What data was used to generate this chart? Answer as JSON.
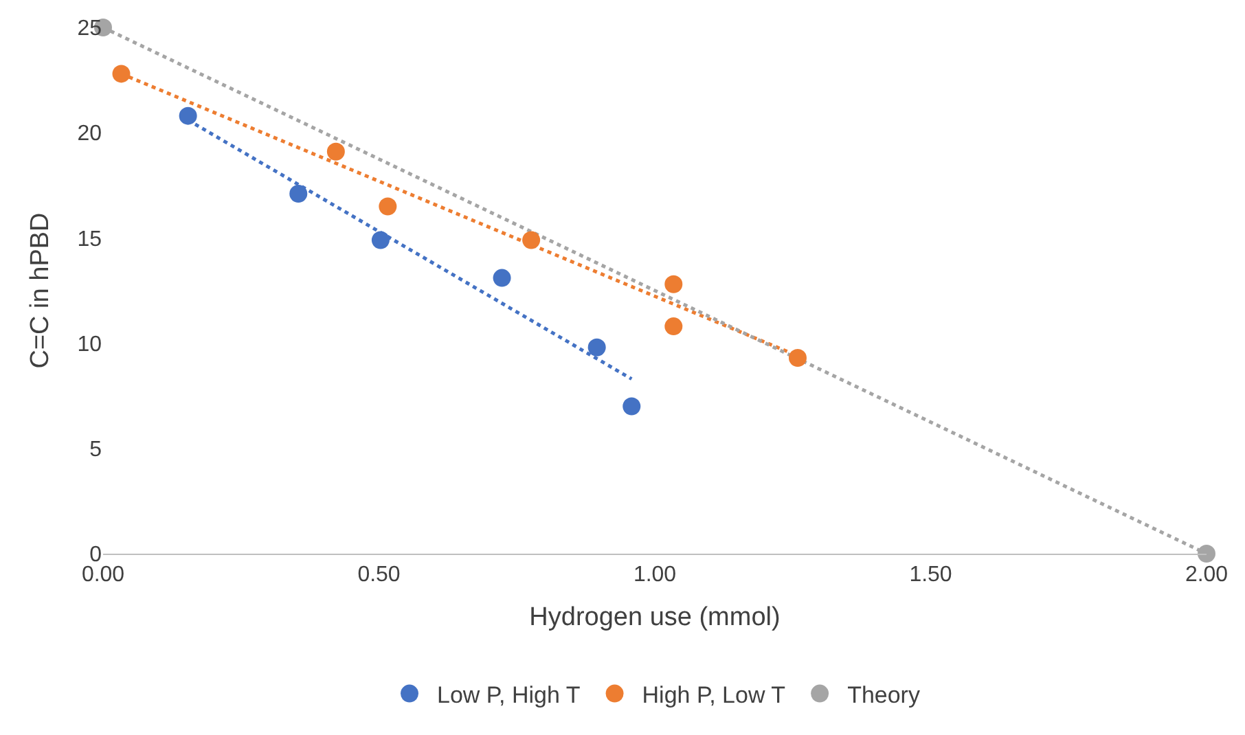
{
  "chart_data": {
    "type": "scatter",
    "xlabel": "Hydrogen use (mmol)",
    "ylabel": "C=C in hPBD",
    "xlim": [
      0,
      2
    ],
    "xticks": [
      {
        "value": 0,
        "label": "0.00"
      },
      {
        "value": 0.5,
        "label": "0.50"
      },
      {
        "value": 1,
        "label": "1.00"
      },
      {
        "value": 1.5,
        "label": "1.50"
      },
      {
        "value": 2,
        "label": "2.00"
      }
    ],
    "ylim": [
      0,
      25
    ],
    "yticks": [
      0,
      5,
      10,
      15,
      20,
      25
    ],
    "grid": false,
    "legend": "bottom",
    "marker": "circle",
    "series": [
      {
        "name": "Low P, High T",
        "color": "#4472c4",
        "x": [
          0.154,
          0.354,
          0.503,
          0.723,
          0.895,
          0.958
        ],
        "values": [
          20.8,
          17.1,
          14.9,
          13.1,
          9.8,
          7.0
        ]
      },
      {
        "name": "High P, Low T",
        "color": "#ed7d31",
        "x": [
          0.033,
          0.422,
          0.516,
          0.776,
          1.034,
          1.034,
          1.259
        ],
        "values": [
          22.8,
          19.1,
          16.5,
          14.9,
          12.8,
          10.8,
          9.3
        ]
      },
      {
        "name": "Theory",
        "color": "#a5a5a5",
        "x": [
          0,
          2
        ],
        "values": [
          25,
          0
        ]
      },
      {
        "type": "line",
        "color": "#4472c4",
        "line_style": "dotted",
        "marker": "none",
        "x": [
          0.154,
          0.958
        ],
        "values": [
          20.6,
          8.3
        ]
      },
      {
        "type": "line",
        "color": "#ed7d31",
        "line_style": "dotted",
        "marker": "none",
        "x": [
          0.033,
          1.259
        ],
        "values": [
          22.8,
          9.4
        ]
      },
      {
        "type": "line",
        "color": "#a5a5a5",
        "line_style": "dotted",
        "marker": "none",
        "x": [
          0,
          2
        ],
        "values": [
          25,
          0
        ]
      }
    ]
  }
}
